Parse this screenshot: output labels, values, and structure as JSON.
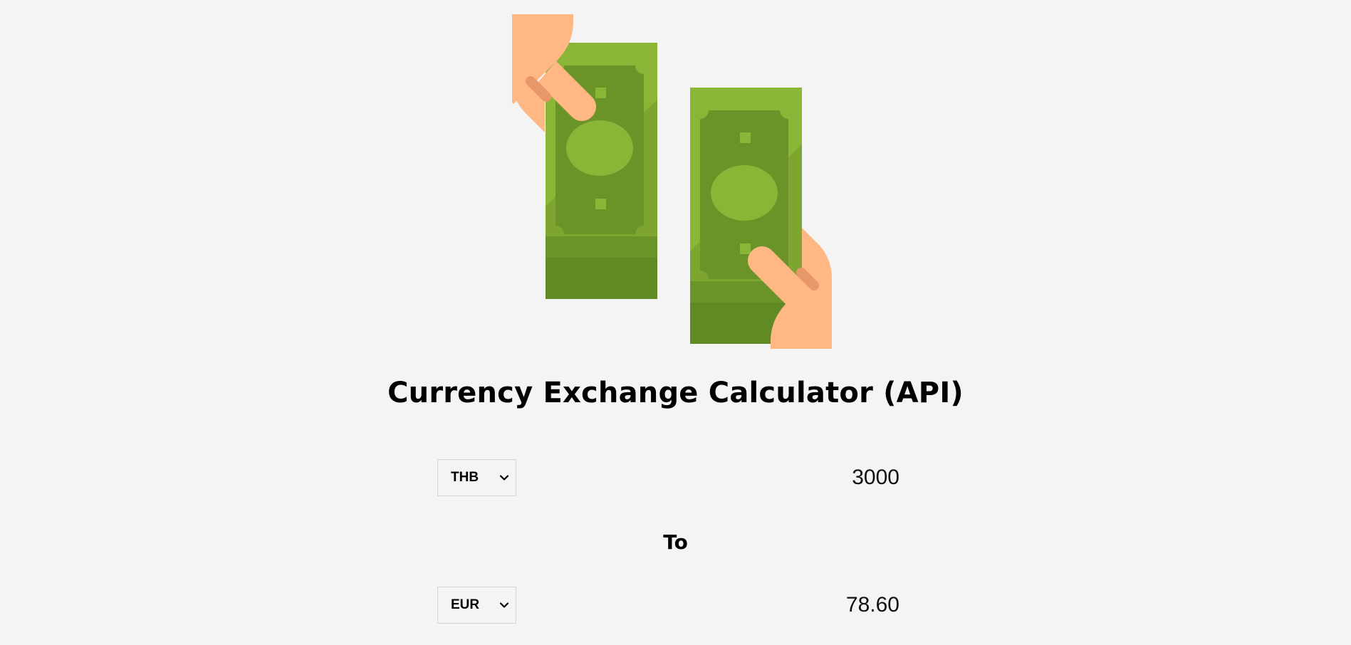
{
  "title": "Currency Exchange Calculator (API)",
  "from": {
    "currency": "THB",
    "amount": "3000"
  },
  "separator": "To",
  "to": {
    "currency": "EUR",
    "amount": "78.60"
  },
  "colors": {
    "background": "#f4f4f4",
    "bill_light": "#8ab536",
    "bill_mid": "#7ea52f",
    "bill_dark": "#6a9328",
    "bill_stack": "#5f8a24",
    "hand": "#ffb783",
    "hand_shadow": "#e8976a"
  },
  "icons": {
    "hero": "money-exchange-icon",
    "dropdown": "chevron-down-icon"
  }
}
